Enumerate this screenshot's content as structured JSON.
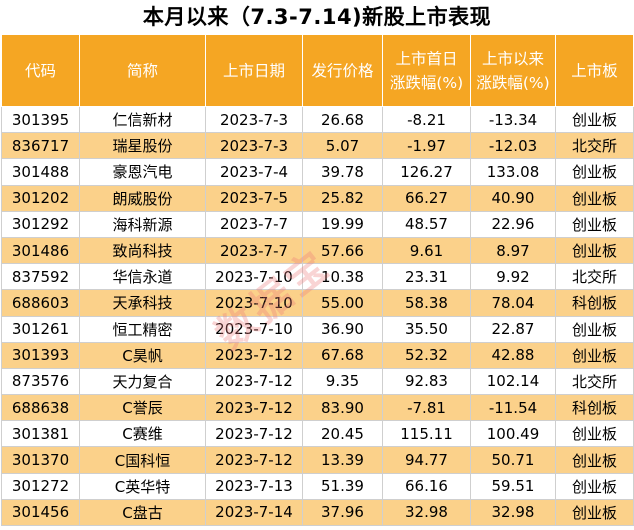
{
  "title": "本月以来（7.3-7.14)新股上市表现",
  "watermark_text": "数据宝",
  "colors": {
    "header_bg": "#f5a623",
    "stripe_bg": "#fbd18a"
  },
  "headers": [
    "代码",
    "简称",
    "上市日期",
    "发行价格",
    "上市首日\n涨跌幅(%)",
    "上市以来\n涨跌幅(%)",
    "上市板"
  ],
  "rows": [
    [
      "301395",
      "仁信新材",
      "2023-7-3",
      "26.68",
      "-8.21",
      "-13.34",
      "创业板"
    ],
    [
      "836717",
      "瑞星股份",
      "2023-7-3",
      "5.07",
      "-1.97",
      "-12.03",
      "北交所"
    ],
    [
      "301488",
      "豪恩汽电",
      "2023-7-4",
      "39.78",
      "126.27",
      "133.08",
      "创业板"
    ],
    [
      "301202",
      "朗威股份",
      "2023-7-5",
      "25.82",
      "66.27",
      "40.90",
      "创业板"
    ],
    [
      "301292",
      "海科新源",
      "2023-7-7",
      "19.99",
      "48.57",
      "22.96",
      "创业板"
    ],
    [
      "301486",
      "致尚科技",
      "2023-7-7",
      "57.66",
      "9.61",
      "8.97",
      "创业板"
    ],
    [
      "837592",
      "华信永道",
      "2023-7-10",
      "10.38",
      "23.31",
      "9.92",
      "北交所"
    ],
    [
      "688603",
      "天承科技",
      "2023-7-10",
      "55.00",
      "58.38",
      "78.04",
      "科创板"
    ],
    [
      "301261",
      "恒工精密",
      "2023-7-10",
      "36.90",
      "35.50",
      "22.87",
      "创业板"
    ],
    [
      "301393",
      "C昊帆",
      "2023-7-12",
      "67.68",
      "52.32",
      "42.88",
      "创业板"
    ],
    [
      "873576",
      "天力复合",
      "2023-7-12",
      "9.35",
      "92.83",
      "102.14",
      "北交所"
    ],
    [
      "688638",
      "C誉辰",
      "2023-7-12",
      "83.90",
      "-7.81",
      "-11.54",
      "科创板"
    ],
    [
      "301381",
      "C赛维",
      "2023-7-12",
      "20.45",
      "115.11",
      "100.49",
      "创业板"
    ],
    [
      "301370",
      "C国科恒",
      "2023-7-12",
      "13.39",
      "94.77",
      "50.71",
      "创业板"
    ],
    [
      "301272",
      "C英华特",
      "2023-7-13",
      "51.39",
      "66.16",
      "59.51",
      "创业板"
    ],
    [
      "301456",
      "C盘古",
      "2023-7-14",
      "37.96",
      "32.98",
      "32.98",
      "创业板"
    ]
  ]
}
